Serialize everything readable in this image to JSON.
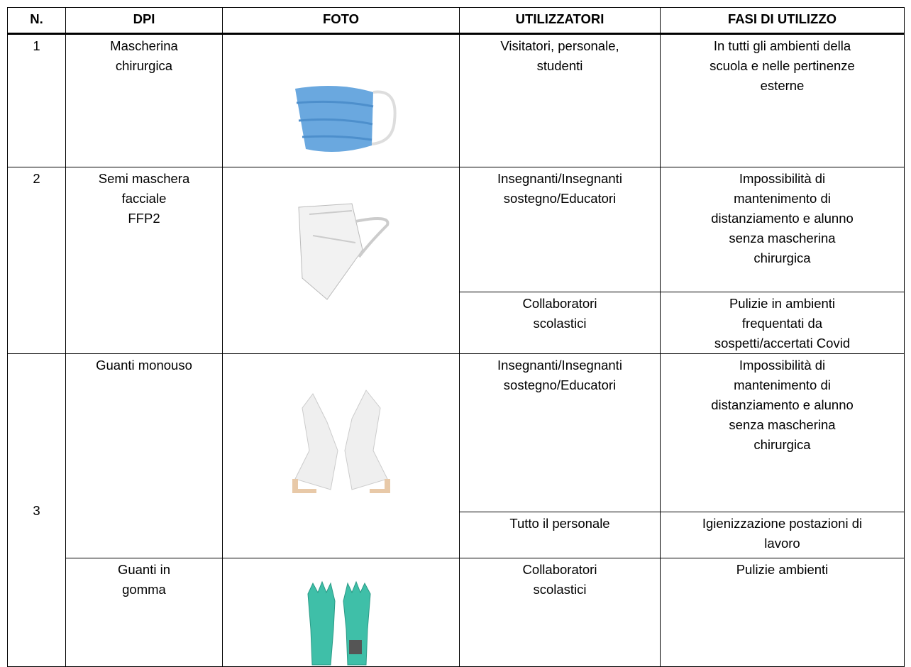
{
  "header": [
    "N.",
    "DPI",
    "FOTO",
    "UTILIZZATORI",
    "FASI DI UTILIZZO"
  ],
  "rows": [
    {
      "n": "1",
      "items": [
        {
          "dpi": "Mascherina\nchirurgica",
          "uses": [
            {
              "users": "Visitatori, personale,\nstudenti",
              "phases": "In tutti gli ambienti della\nscuola e nelle pertinenze\nesterne"
            }
          ]
        }
      ]
    },
    {
      "n": "2",
      "items": [
        {
          "dpi": "Semi maschera\nfacciale\nFFP2",
          "uses": [
            {
              "users": "Insegnanti/Insegnanti\nsostegno/Educatori",
              "phases": "Impossibilità di\nmantenimento di\ndistanziamento e alunno\nsenza mascherina\nchirurgica"
            },
            {
              "users": "Collaboratori\nscolastici",
              "phases": "Pulizie in ambienti\nfrequentati da\nsospetti/accertati Covid"
            }
          ]
        }
      ]
    },
    {
      "n": "3",
      "items": [
        {
          "dpi": "Guanti monouso",
          "uses": [
            {
              "users": "Insegnanti/Insegnanti\nsostegno/Educatori",
              "phases": "Impossibilità di\nmantenimento di\ndistanziamento e alunno\nsenza mascherina\nchirurgica"
            },
            {
              "users": "Tutto il personale",
              "phases": "Igienizzazione postazioni di\nlavoro"
            }
          ]
        },
        {
          "dpi": "Guanti in\ngomma",
          "uses": [
            {
              "users": "Collaboratori\nscolastici",
              "phases": "Pulizie ambienti"
            }
          ]
        }
      ]
    }
  ]
}
